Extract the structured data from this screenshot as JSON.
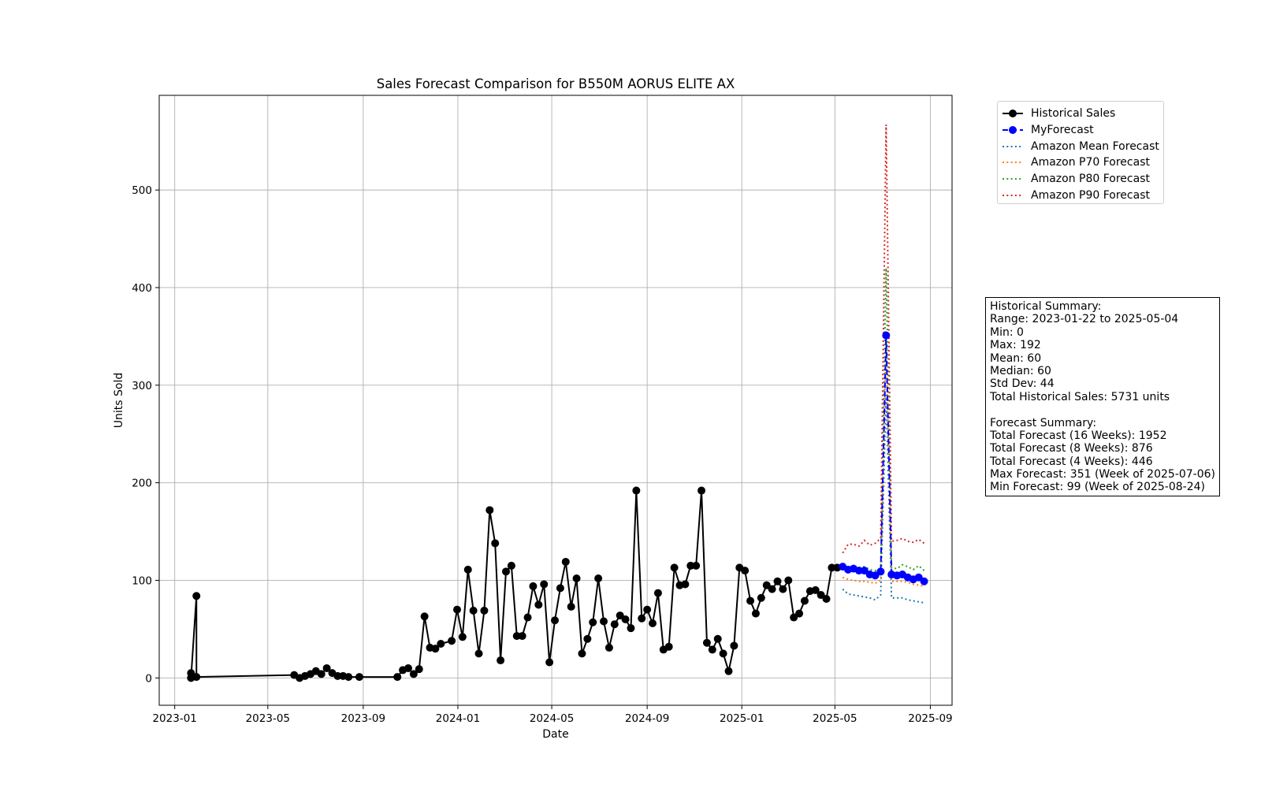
{
  "chart_data": {
    "type": "line",
    "title": "Sales Forecast Comparison for B550M AORUS ELITE AX",
    "xlabel": "Date",
    "ylabel": "Units Sold",
    "xlim": [
      "2022-12-12",
      "2025-09-29"
    ],
    "ylim": [
      -28,
      597
    ],
    "x_ticks": [
      "2023-01",
      "2023-05",
      "2023-09",
      "2024-01",
      "2024-05",
      "2024-09",
      "2025-01",
      "2025-05",
      "2025-09"
    ],
    "y_ticks": [
      0,
      100,
      200,
      300,
      400,
      500
    ],
    "grid": true,
    "legend_position": "outside-right-top",
    "series": [
      {
        "name": "Historical Sales",
        "color": "#000000",
        "line": "solid",
        "marker": "circle",
        "points": [
          [
            "2023-01-22",
            5
          ],
          [
            "2023-01-22",
            0
          ],
          [
            "2023-01-29",
            84
          ],
          [
            "2023-01-29",
            1
          ],
          [
            "2023-06-04",
            3
          ],
          [
            "2023-06-11",
            0
          ],
          [
            "2023-06-18",
            2
          ],
          [
            "2023-06-25",
            4
          ],
          [
            "2023-07-02",
            7
          ],
          [
            "2023-07-09",
            4
          ],
          [
            "2023-07-16",
            10
          ],
          [
            "2023-07-23",
            5
          ],
          [
            "2023-07-30",
            2
          ],
          [
            "2023-08-06",
            2
          ],
          [
            "2023-08-13",
            1
          ],
          [
            "2023-08-27",
            1
          ],
          [
            "2023-10-15",
            1
          ],
          [
            "2023-10-22",
            8
          ],
          [
            "2023-10-29",
            10
          ],
          [
            "2023-11-05",
            4
          ],
          [
            "2023-11-12",
            9
          ],
          [
            "2023-11-19",
            63
          ],
          [
            "2023-11-26",
            31
          ],
          [
            "2023-12-03",
            30
          ],
          [
            "2023-12-10",
            35
          ],
          [
            "2023-12-24",
            38
          ],
          [
            "2023-12-31",
            70
          ],
          [
            "2024-01-07",
            42
          ],
          [
            "2024-01-14",
            111
          ],
          [
            "2024-01-21",
            69
          ],
          [
            "2024-01-28",
            25
          ],
          [
            "2024-02-04",
            69
          ],
          [
            "2024-02-11",
            172
          ],
          [
            "2024-02-18",
            138
          ],
          [
            "2024-02-25",
            18
          ],
          [
            "2024-03-03",
            109
          ],
          [
            "2024-03-10",
            115
          ],
          [
            "2024-03-17",
            43
          ],
          [
            "2024-03-24",
            43
          ],
          [
            "2024-03-31",
            62
          ],
          [
            "2024-04-07",
            94
          ],
          [
            "2024-04-14",
            75
          ],
          [
            "2024-04-21",
            96
          ],
          [
            "2024-04-28",
            16
          ],
          [
            "2024-05-05",
            59
          ],
          [
            "2024-05-12",
            92
          ],
          [
            "2024-05-19",
            119
          ],
          [
            "2024-05-26",
            73
          ],
          [
            "2024-06-02",
            102
          ],
          [
            "2024-06-09",
            25
          ],
          [
            "2024-06-16",
            40
          ],
          [
            "2024-06-23",
            57
          ],
          [
            "2024-06-30",
            102
          ],
          [
            "2024-07-07",
            58
          ],
          [
            "2024-07-14",
            31
          ],
          [
            "2024-07-21",
            55
          ],
          [
            "2024-07-28",
            64
          ],
          [
            "2024-08-04",
            60
          ],
          [
            "2024-08-11",
            51
          ],
          [
            "2024-08-18",
            192
          ],
          [
            "2024-08-25",
            61
          ],
          [
            "2024-09-01",
            70
          ],
          [
            "2024-09-08",
            56
          ],
          [
            "2024-09-15",
            87
          ],
          [
            "2024-09-22",
            29
          ],
          [
            "2024-09-29",
            32
          ],
          [
            "2024-10-06",
            113
          ],
          [
            "2024-10-13",
            95
          ],
          [
            "2024-10-20",
            96
          ],
          [
            "2024-10-27",
            115
          ],
          [
            "2024-11-03",
            115
          ],
          [
            "2024-11-10",
            192
          ],
          [
            "2024-11-17",
            36
          ],
          [
            "2024-11-24",
            29
          ],
          [
            "2024-12-01",
            40
          ],
          [
            "2024-12-08",
            25
          ],
          [
            "2024-12-15",
            7
          ],
          [
            "2024-12-22",
            33
          ],
          [
            "2024-12-29",
            113
          ],
          [
            "2025-01-05",
            110
          ],
          [
            "2025-01-12",
            79
          ],
          [
            "2025-01-19",
            66
          ],
          [
            "2025-01-26",
            82
          ],
          [
            "2025-02-02",
            95
          ],
          [
            "2025-02-09",
            91
          ],
          [
            "2025-02-16",
            99
          ],
          [
            "2025-02-23",
            91
          ],
          [
            "2025-03-02",
            100
          ],
          [
            "2025-03-09",
            62
          ],
          [
            "2025-03-16",
            66
          ],
          [
            "2025-03-23",
            79
          ],
          [
            "2025-03-30",
            89
          ],
          [
            "2025-04-06",
            90
          ],
          [
            "2025-04-13",
            85
          ],
          [
            "2025-04-20",
            81
          ],
          [
            "2025-04-27",
            113
          ],
          [
            "2025-05-04",
            113
          ]
        ]
      },
      {
        "name": "MyForecast",
        "color": "#0000ff",
        "line": "dashed",
        "marker": "circle",
        "x": [
          "2025-05-11",
          "2025-05-18",
          "2025-05-25",
          "2025-06-01",
          "2025-06-08",
          "2025-06-15",
          "2025-06-22",
          "2025-06-29",
          "2025-07-06",
          "2025-07-13",
          "2025-07-20",
          "2025-07-27",
          "2025-08-03",
          "2025-08-10",
          "2025-08-17",
          "2025-08-24"
        ],
        "values": [
          114,
          111,
          112,
          110,
          110,
          106,
          105,
          109,
          351,
          106,
          105,
          106,
          103,
          101,
          103,
          99
        ]
      },
      {
        "name": "Amazon Mean Forecast",
        "color": "#1f77b4",
        "line": "dotted",
        "x": [
          "2025-05-11",
          "2025-05-18",
          "2025-05-25",
          "2025-06-01",
          "2025-06-08",
          "2025-06-15",
          "2025-06-22",
          "2025-06-29",
          "2025-07-06",
          "2025-07-13",
          "2025-07-20",
          "2025-07-27",
          "2025-08-03",
          "2025-08-10",
          "2025-08-17",
          "2025-08-24"
        ],
        "values": [
          91,
          86,
          85,
          84,
          83,
          82,
          80,
          85,
          290,
          82,
          82,
          82,
          80,
          79,
          78,
          77
        ]
      },
      {
        "name": "Amazon P70 Forecast",
        "color": "#ff7f0e",
        "line": "dotted",
        "x": [
          "2025-05-11",
          "2025-05-18",
          "2025-05-25",
          "2025-06-01",
          "2025-06-08",
          "2025-06-15",
          "2025-06-22",
          "2025-06-29",
          "2025-07-06",
          "2025-07-13",
          "2025-07-20",
          "2025-07-27",
          "2025-08-03",
          "2025-08-10",
          "2025-08-17",
          "2025-08-24"
        ],
        "values": [
          103,
          101,
          100,
          99,
          99,
          98,
          97,
          100,
          340,
          99,
          99,
          99,
          98,
          96,
          95,
          94
        ]
      },
      {
        "name": "Amazon P80 Forecast",
        "color": "#2ca02c",
        "line": "dotted",
        "x": [
          "2025-05-11",
          "2025-05-18",
          "2025-05-25",
          "2025-06-01",
          "2025-06-08",
          "2025-06-15",
          "2025-06-22",
          "2025-06-29",
          "2025-07-06",
          "2025-07-13",
          "2025-07-20",
          "2025-07-27",
          "2025-08-03",
          "2025-08-10",
          "2025-08-17",
          "2025-08-24"
        ],
        "values": [
          111,
          113,
          112,
          113,
          114,
          111,
          110,
          112,
          420,
          113,
          112,
          116,
          114,
          111,
          115,
          110
        ]
      },
      {
        "name": "Amazon P90 Forecast",
        "color": "#d62728",
        "line": "dotted",
        "x": [
          "2025-05-11",
          "2025-05-18",
          "2025-05-25",
          "2025-06-01",
          "2025-06-08",
          "2025-06-15",
          "2025-06-22",
          "2025-06-29",
          "2025-07-06",
          "2025-07-13",
          "2025-07-20",
          "2025-07-27",
          "2025-08-03",
          "2025-08-10",
          "2025-08-17",
          "2025-08-24"
        ],
        "values": [
          128,
          137,
          137,
          135,
          141,
          136,
          138,
          143,
          567,
          140,
          141,
          143,
          140,
          139,
          142,
          138
        ]
      }
    ]
  },
  "summary": {
    "lines": [
      "Historical Summary:",
      "Range: 2023-01-22 to 2025-05-04",
      "Min: 0",
      "Max: 192",
      "Mean: 60",
      "Median: 60",
      "Std Dev: 44",
      "Total Historical Sales: 5731 units",
      "",
      "Forecast Summary:",
      "Total Forecast (16 Weeks): 1952",
      "Total Forecast (8 Weeks): 876",
      "Total Forecast (4 Weeks): 446",
      "Max Forecast: 351 (Week of 2025-07-06)",
      "Min Forecast: 99 (Week of 2025-08-24)"
    ]
  }
}
